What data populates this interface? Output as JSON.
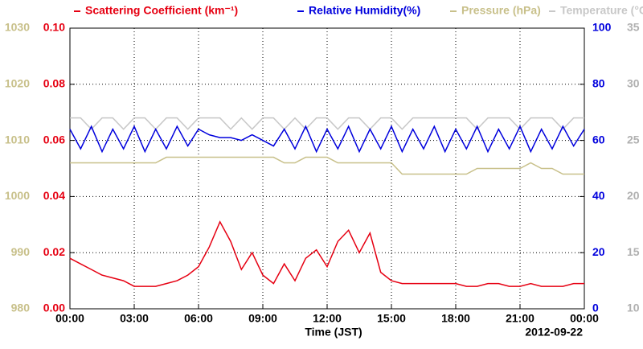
{
  "chart_data": {
    "type": "line",
    "x_label": "Time (JST)",
    "date_label": "2012-09-22",
    "x": [
      0,
      0.5,
      1,
      1.5,
      2,
      2.5,
      3,
      3.5,
      4,
      4.5,
      5,
      5.5,
      6,
      6.5,
      7,
      7.5,
      8,
      8.5,
      9,
      9.5,
      10,
      10.5,
      11,
      11.5,
      12,
      12.5,
      13,
      13.5,
      14,
      14.5,
      15,
      15.5,
      16,
      16.5,
      17,
      17.5,
      18,
      18.5,
      19,
      19.5,
      20,
      20.5,
      21,
      21.5,
      22,
      22.5,
      23,
      23.5,
      24
    ],
    "xlim": [
      0,
      24
    ],
    "xticks": [
      {
        "value": 0,
        "label": "00:00"
      },
      {
        "value": 3,
        "label": "03:00"
      },
      {
        "value": 6,
        "label": "06:00"
      },
      {
        "value": 9,
        "label": "09:00"
      },
      {
        "value": 12,
        "label": "12:00"
      },
      {
        "value": 15,
        "label": "15:00"
      },
      {
        "value": 18,
        "label": "18:00"
      },
      {
        "value": 21,
        "label": "21:00"
      },
      {
        "value": 24,
        "label": "00:00"
      }
    ],
    "ylim": [
      0,
      0.1
    ],
    "yticks": [
      {
        "value": 0,
        "label": "0.00"
      },
      {
        "value": 0.02,
        "label": "0.02"
      },
      {
        "value": 0.04,
        "label": "0.04"
      },
      {
        "value": 0.06,
        "label": "0.06"
      },
      {
        "value": 0.08,
        "label": "0.08"
      },
      {
        "value": 0.1,
        "label": "0.10"
      }
    ],
    "y2lim": [
      0,
      100
    ],
    "y2ticks": [
      0,
      20,
      40,
      60,
      80,
      100
    ],
    "y3lim": [
      980,
      1030
    ],
    "y3ticks": [
      980,
      990,
      1000,
      1010,
      1020,
      1030
    ],
    "y4lim": [
      10,
      35
    ],
    "y4ticks": [
      10,
      15,
      20,
      25,
      30,
      35
    ],
    "grid": true,
    "series": [
      {
        "name": "Scattering Coefficient (km⁻¹)",
        "color": "#e60012",
        "axis": "y",
        "values": [
          0.018,
          0.016,
          0.014,
          0.012,
          0.011,
          0.01,
          0.008,
          0.008,
          0.008,
          0.009,
          0.01,
          0.012,
          0.015,
          0.022,
          0.031,
          0.024,
          0.014,
          0.02,
          0.012,
          0.009,
          0.016,
          0.01,
          0.018,
          0.021,
          0.015,
          0.024,
          0.028,
          0.02,
          0.027,
          0.013,
          0.01,
          0.009,
          0.009,
          0.009,
          0.009,
          0.009,
          0.009,
          0.008,
          0.008,
          0.009,
          0.009,
          0.008,
          0.008,
          0.009,
          0.008,
          0.008,
          0.008,
          0.009,
          0.009
        ]
      },
      {
        "name": "Relative Humidity(%)",
        "color": "#0000dd",
        "axis": "y2",
        "values": [
          64,
          57,
          65,
          56,
          64,
          57,
          65,
          56,
          64,
          57,
          65,
          58,
          64,
          62,
          61,
          61,
          60,
          62,
          60,
          58,
          64,
          57,
          65,
          56,
          64,
          57,
          65,
          56,
          64,
          57,
          65,
          56,
          64,
          57,
          65,
          56,
          64,
          57,
          65,
          56,
          64,
          57,
          65,
          56,
          64,
          57,
          65,
          58,
          64
        ]
      },
      {
        "name": "Pressure (hPa)",
        "color": "#c8c08a",
        "axis": "y3",
        "values": [
          1006,
          1006,
          1006,
          1006,
          1006,
          1006,
          1006,
          1006,
          1006,
          1007,
          1007,
          1007,
          1007,
          1007,
          1007,
          1007,
          1007,
          1007,
          1007,
          1007,
          1006,
          1006,
          1007,
          1007,
          1007,
          1006,
          1006,
          1006,
          1006,
          1006,
          1006,
          1004,
          1004,
          1004,
          1004,
          1004,
          1004,
          1004,
          1005,
          1005,
          1005,
          1005,
          1005,
          1006,
          1005,
          1005,
          1004,
          1004,
          1004
        ]
      },
      {
        "name": "Temperature (°C)",
        "color": "#c8c8c8",
        "axis": "y4",
        "values": [
          27,
          27,
          26,
          27,
          27,
          26,
          27,
          27,
          26,
          27,
          27,
          26,
          27,
          27,
          27,
          26,
          27,
          26,
          27,
          27,
          26,
          27,
          26,
          27,
          27,
          26,
          27,
          27,
          26,
          27,
          27,
          26,
          27,
          27,
          27,
          27,
          27,
          27,
          26,
          27,
          27,
          27,
          26,
          27,
          27,
          27,
          26,
          27,
          27
        ]
      }
    ]
  }
}
